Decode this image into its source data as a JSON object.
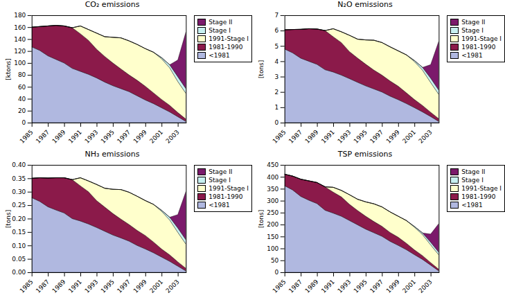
{
  "chart_data": [
    {
      "type": "area",
      "stacked": true,
      "title": "CO₂ emissions",
      "ylabel": "[ktons]",
      "x": [
        1985,
        1986,
        1987,
        1988,
        1989,
        1990,
        1991,
        1992,
        1993,
        1994,
        1995,
        1996,
        1997,
        1998,
        1999,
        2000,
        2001,
        2002,
        2003,
        2004
      ],
      "xlim": [
        1985,
        2004
      ],
      "xticks": [
        1985,
        1987,
        1989,
        1991,
        1993,
        1995,
        1997,
        1999,
        2001,
        2003
      ],
      "ylim": [
        0,
        180
      ],
      "yticks": [
        0,
        20,
        40,
        60,
        80,
        100,
        120,
        140,
        160,
        180
      ],
      "grid": false,
      "legend": "right",
      "series": [
        {
          "name": "<1981",
          "color": "#b0b8e0",
          "values": [
            127,
            121,
            112,
            106,
            100,
            91,
            86,
            81,
            75,
            68,
            62,
            57,
            52,
            45,
            38,
            32,
            25,
            18,
            10,
            2
          ]
        },
        {
          "name": "1981-1990",
          "color": "#8b1a4a",
          "values": [
            33,
            40,
            50,
            57,
            62,
            68,
            63,
            57,
            48,
            43,
            38,
            33,
            28,
            26,
            23,
            18,
            14,
            11,
            7,
            4
          ]
        },
        {
          "name": "1991-Stage I",
          "color": "#ffffcc",
          "values": [
            0,
            0,
            0,
            0,
            0,
            0,
            13,
            18,
            27,
            33,
            43,
            52,
            57,
            60,
            63,
            68,
            68,
            63,
            52,
            43
          ]
        },
        {
          "name": "Stage I",
          "color": "#c8f0f0",
          "values": [
            0,
            0,
            0,
            0,
            0,
            0,
            0,
            0,
            0,
            0,
            0,
            0,
            0,
            0,
            0,
            0,
            2,
            5,
            8,
            8
          ]
        },
        {
          "name": "Stage II",
          "color": "#7b1a6b",
          "values": [
            0,
            0,
            0,
            0,
            0,
            0,
            0,
            0,
            0,
            0,
            0,
            0,
            0,
            0,
            0,
            0,
            0,
            0,
            28,
            95
          ]
        }
      ]
    },
    {
      "type": "area",
      "stacked": true,
      "title": "N₂O emissions",
      "ylabel": "[tons]",
      "x": [
        1985,
        1986,
        1987,
        1988,
        1989,
        1990,
        1991,
        1992,
        1993,
        1994,
        1995,
        1996,
        1997,
        1998,
        1999,
        2000,
        2001,
        2002,
        2003,
        2004
      ],
      "xlim": [
        1985,
        2004
      ],
      "xticks": [
        1985,
        1987,
        1989,
        1991,
        1993,
        1995,
        1997,
        1999,
        2001,
        2003
      ],
      "ylim": [
        0,
        7
      ],
      "yticks": [
        0,
        1,
        2,
        3,
        4,
        5,
        6,
        7
      ],
      "grid": false,
      "legend": "right",
      "series": [
        {
          "name": "<1981",
          "color": "#b0b8e0",
          "values": [
            4.8,
            4.55,
            4.2,
            4.0,
            3.8,
            3.45,
            3.3,
            3.1,
            2.87,
            2.63,
            2.4,
            2.2,
            2.0,
            1.73,
            1.5,
            1.25,
            0.98,
            0.7,
            0.4,
            0.08
          ]
        },
        {
          "name": "1981-1990",
          "color": "#8b1a4a",
          "values": [
            1.25,
            1.52,
            1.88,
            2.12,
            2.3,
            2.55,
            2.3,
            2.12,
            1.76,
            1.58,
            1.41,
            1.23,
            1.1,
            0.99,
            0.88,
            0.7,
            0.53,
            0.42,
            0.28,
            0.18
          ]
        },
        {
          "name": "1991-Stage I",
          "color": "#ffffcc",
          "values": [
            0,
            0,
            0,
            0,
            0,
            0,
            0.52,
            0.7,
            1.06,
            1.23,
            1.58,
            1.94,
            2.12,
            2.22,
            2.3,
            2.47,
            2.47,
            2.3,
            1.94,
            1.58
          ]
        },
        {
          "name": "Stage I",
          "color": "#c8f0f0",
          "values": [
            0,
            0,
            0,
            0,
            0,
            0,
            0,
            0,
            0,
            0,
            0,
            0,
            0,
            0,
            0,
            0,
            0.07,
            0.18,
            0.28,
            0.28
          ]
        },
        {
          "name": "Stage II",
          "color": "#7b1a6b",
          "values": [
            0,
            0,
            0,
            0,
            0,
            0,
            0,
            0,
            0,
            0,
            0,
            0,
            0,
            0,
            0,
            0,
            0,
            0,
            0.88,
            3.18
          ]
        }
      ]
    },
    {
      "type": "area",
      "stacked": true,
      "title": "NH₃ emissions",
      "ylabel": "[tons]",
      "x": [
        1985,
        1986,
        1987,
        1988,
        1989,
        1990,
        1991,
        1992,
        1993,
        1994,
        1995,
        1996,
        1997,
        1998,
        1999,
        2000,
        2001,
        2002,
        2003,
        2004
      ],
      "xlim": [
        1985,
        2004
      ],
      "xticks": [
        1985,
        1987,
        1989,
        1991,
        1993,
        1995,
        1997,
        1999,
        2001,
        2003
      ],
      "ylim": [
        0,
        0.4
      ],
      "yticks": [
        {
          "value": 0,
          "label": "0.00"
        },
        0.05,
        {
          "value": 0.1,
          "label": "0.10"
        },
        0.15,
        {
          "value": 0.2,
          "label": "0.20"
        },
        0.25,
        {
          "value": 0.3,
          "label": "0.30"
        },
        0.35,
        {
          "value": 0.4,
          "label": "0.40"
        }
      ],
      "grid": false,
      "legend": "right",
      "series": [
        {
          "name": "<1981",
          "color": "#b0b8e0",
          "values": [
            0.278,
            0.264,
            0.244,
            0.232,
            0.221,
            0.2,
            0.191,
            0.18,
            0.167,
            0.153,
            0.139,
            0.128,
            0.116,
            0.1,
            0.087,
            0.073,
            0.057,
            0.041,
            0.023,
            0.005
          ]
        },
        {
          "name": "1981-1990",
          "color": "#8b1a4a",
          "values": [
            0.072,
            0.088,
            0.107,
            0.12,
            0.131,
            0.145,
            0.131,
            0.12,
            0.1,
            0.09,
            0.08,
            0.07,
            0.062,
            0.056,
            0.05,
            0.04,
            0.03,
            0.024,
            0.016,
            0.01
          ]
        },
        {
          "name": "1991-Stage I",
          "color": "#ffffcc",
          "values": [
            0,
            0,
            0,
            0,
            0,
            0,
            0.03,
            0.04,
            0.06,
            0.07,
            0.09,
            0.11,
            0.12,
            0.127,
            0.13,
            0.14,
            0.14,
            0.13,
            0.11,
            0.09
          ]
        },
        {
          "name": "Stage I",
          "color": "#c8f0f0",
          "values": [
            0,
            0,
            0,
            0,
            0,
            0,
            0,
            0,
            0,
            0,
            0,
            0,
            0,
            0,
            0,
            0,
            0.004,
            0.01,
            0.016,
            0.016
          ]
        },
        {
          "name": "Stage II",
          "color": "#7b1a6b",
          "values": [
            0,
            0,
            0,
            0,
            0,
            0,
            0,
            0,
            0,
            0,
            0,
            0,
            0,
            0,
            0,
            0,
            0,
            0,
            0.05,
            0.18
          ]
        }
      ]
    },
    {
      "type": "area",
      "stacked": true,
      "title": "TSP emissions",
      "ylabel": "[tons]",
      "x": [
        1985,
        1986,
        1987,
        1988,
        1989,
        1990,
        1991,
        1992,
        1993,
        1994,
        1995,
        1996,
        1997,
        1998,
        1999,
        2000,
        2001,
        2002,
        2003,
        2004
      ],
      "xlim": [
        1985,
        2004
      ],
      "xticks": [
        1985,
        1987,
        1989,
        1991,
        1993,
        1995,
        1997,
        1999,
        2001,
        2003
      ],
      "ylim": [
        0,
        450
      ],
      "yticks": [
        0,
        50,
        100,
        150,
        200,
        250,
        300,
        350,
        400,
        450
      ],
      "grid": false,
      "legend": "right",
      "series": [
        {
          "name": "<1981",
          "color": "#b0b8e0",
          "values": [
            363,
            345,
            318,
            302,
            288,
            260,
            248,
            235,
            217,
            199,
            181,
            166,
            151,
            130,
            113,
            95,
            74,
            54,
            30,
            6
          ]
        },
        {
          "name": "1981-1990",
          "color": "#8b1a4a",
          "values": [
            48,
            58,
            72,
            81,
            88,
            98,
            88,
            81,
            68,
            60,
            54,
            47,
            42,
            37,
            34,
            27,
            20,
            16,
            11,
            7
          ]
        },
        {
          "name": "1991-Stage I",
          "color": "#ffffcc",
          "values": [
            0,
            0,
            0,
            0,
            0,
            0,
            20,
            27,
            40,
            47,
            60,
            74,
            81,
            86,
            88,
            95,
            95,
            88,
            74,
            60
          ]
        },
        {
          "name": "Stage I",
          "color": "#c8f0f0",
          "values": [
            0,
            0,
            0,
            0,
            0,
            0,
            0,
            0,
            0,
            0,
            0,
            0,
            0,
            0,
            0,
            0,
            3,
            7,
            11,
            11
          ]
        },
        {
          "name": "Stage II",
          "color": "#7b1a6b",
          "values": [
            0,
            0,
            0,
            0,
            0,
            0,
            0,
            0,
            0,
            0,
            0,
            0,
            0,
            0,
            0,
            0,
            0,
            0,
            34,
            120
          ]
        }
      ]
    }
  ]
}
